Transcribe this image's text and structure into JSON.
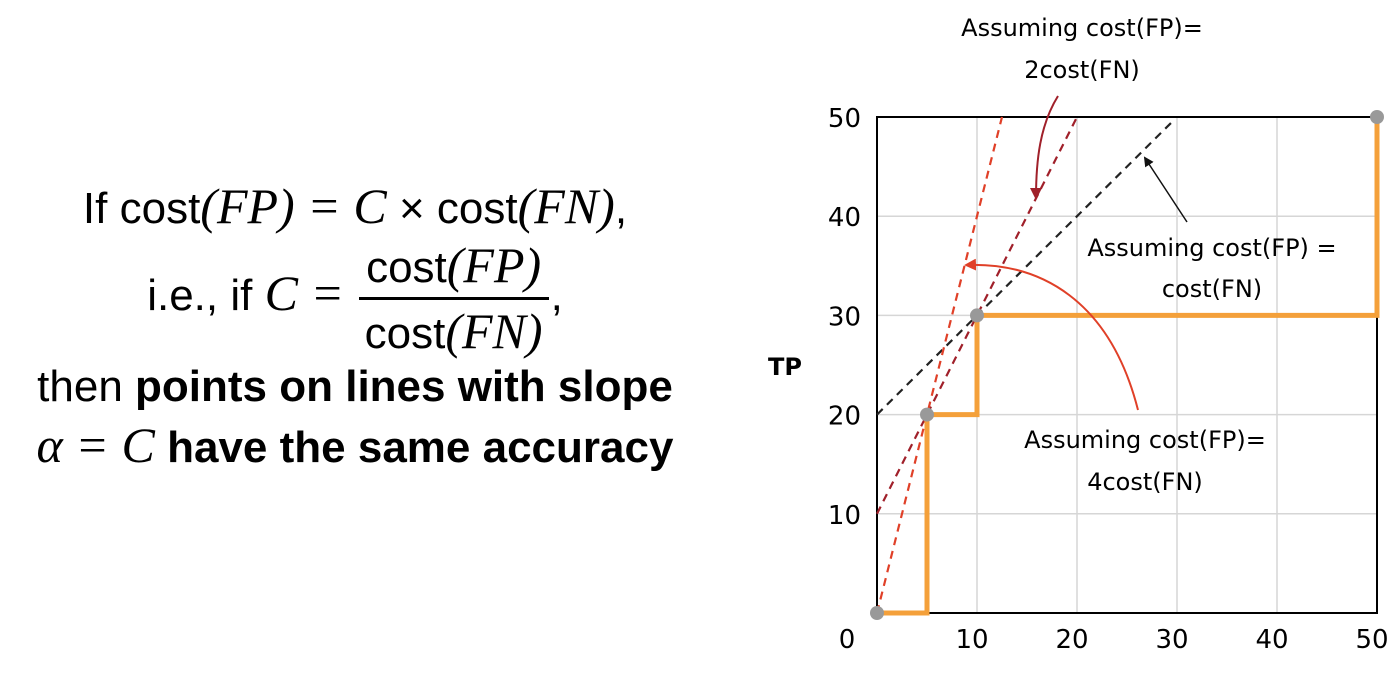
{
  "formula": {
    "line1_if": "If cost",
    "line1_fp": "(FP) = C",
    "line1_times": " × cost",
    "line1_fn": "(FN)",
    "line1_comma": ",",
    "line2_ie": "i.e., if ",
    "line2_c": "C = ",
    "frac_num_text": "cost",
    "frac_num_math": "(FP)",
    "frac_den_text": "cost",
    "frac_den_math": "(FN)",
    "line2_comma": ",",
    "line3_then": "then ",
    "line3_bold": "points on lines with slope",
    "line4_math": "α = C",
    "line4_bold": " have the same accuracy"
  },
  "chart_data": {
    "type": "line",
    "ylabel": "TP",
    "xlabel": "",
    "xlim": [
      0,
      50
    ],
    "ylim": [
      0,
      50
    ],
    "x_ticks": [
      0,
      10,
      20,
      30,
      40,
      50
    ],
    "y_ticks": [
      10,
      20,
      30,
      40,
      50
    ],
    "grid": true,
    "colors": {
      "curve": "#f4a03a",
      "point": "#999999",
      "slope1": "#222222",
      "slope2": "#a0202a",
      "slope4": "#e04028",
      "arrow1": "#111111",
      "arrow2": "#a0202a",
      "arrow4": "#e04028"
    },
    "curve": [
      [
        0,
        0
      ],
      [
        5,
        0
      ],
      [
        5,
        20
      ],
      [
        10,
        20
      ],
      [
        10,
        30
      ],
      [
        50,
        30
      ],
      [
        50,
        50
      ]
    ],
    "points": [
      [
        0,
        0
      ],
      [
        5,
        20
      ],
      [
        10,
        30
      ],
      [
        50,
        50
      ]
    ],
    "lines": [
      {
        "slope": 1,
        "x": [
          0,
          29.5
        ],
        "y": [
          20,
          49.5
        ],
        "color_key": "slope1"
      },
      {
        "slope": 2,
        "x": [
          0,
          20
        ],
        "y": [
          10,
          50
        ],
        "color_key": "slope2"
      },
      {
        "slope": 4,
        "x": [
          0,
          12.5
        ],
        "y": [
          0,
          50
        ],
        "color_key": "slope4"
      }
    ],
    "annotations": [
      {
        "lines": [
          "Assuming cost(FP)=",
          "2cost(FN)"
        ],
        "color_key": "arrow2"
      },
      {
        "lines": [
          "Assuming cost(FP) =",
          "cost(FN)"
        ],
        "color_key": "arrow1"
      },
      {
        "lines": [
          "Assuming cost(FP)=",
          "4cost(FN)"
        ],
        "color_key": "arrow4"
      }
    ]
  }
}
